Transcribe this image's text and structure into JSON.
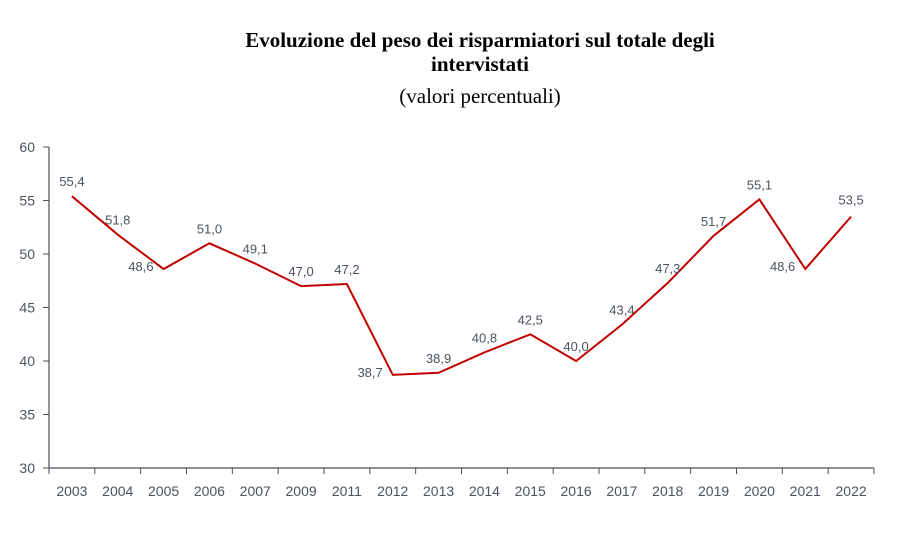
{
  "chart_data": {
    "type": "line",
    "title": "Evoluzione del peso dei risparmiatori sul totale degli",
    "title_line2": "intervistati",
    "subtitle": "(valori percentuali)",
    "xlabel": "",
    "ylabel": "",
    "ylim": [
      30,
      60
    ],
    "yticks": [
      "30",
      "35",
      "40",
      "45",
      "50",
      "55",
      "60"
    ],
    "categories": [
      "2003",
      "2004",
      "2005",
      "2006",
      "2007",
      "2009",
      "2011",
      "2012",
      "2013",
      "2014",
      "2015",
      "2016",
      "2017",
      "2018",
      "2019",
      "2020",
      "2021",
      "2022"
    ],
    "series": [
      {
        "name": "Risparmiatori",
        "color": "#c00000",
        "values": [
          55.4,
          51.8,
          48.6,
          51.0,
          49.1,
          47.0,
          47.2,
          38.7,
          38.9,
          40.8,
          42.5,
          40.0,
          43.4,
          47.3,
          51.7,
          55.1,
          48.6,
          53.5
        ],
        "labels": [
          "55,4",
          "51,8",
          "48,6",
          "51,0",
          "49,1",
          "47,0",
          "47,2",
          "38,7",
          "38,9",
          "40,8",
          "42,5",
          "40,0",
          "43,4",
          "47,3",
          "51,7",
          "55,1",
          "48,6",
          "53,5"
        ]
      }
    ],
    "grid": false,
    "legend": "none"
  }
}
